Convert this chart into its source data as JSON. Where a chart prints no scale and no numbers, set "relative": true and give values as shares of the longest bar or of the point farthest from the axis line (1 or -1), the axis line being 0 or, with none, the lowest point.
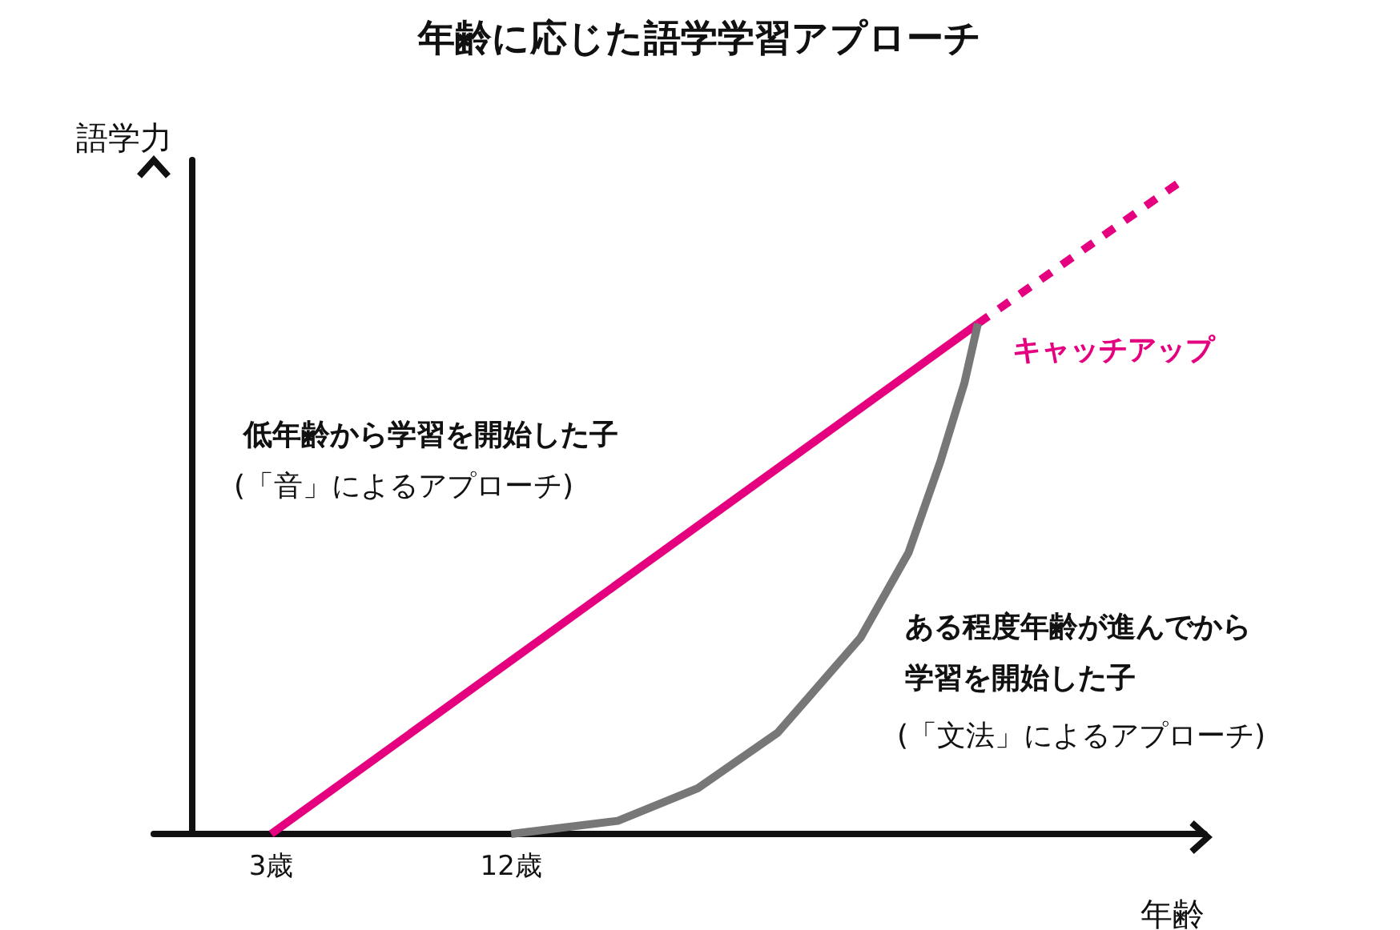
{
  "chart_data": {
    "type": "line",
    "title": "年齢に応じた語学学習アプローチ",
    "xlabel": "年齢",
    "ylabel": "語学力",
    "relative": true,
    "tick_labels": "x",
    "marker": "none",
    "xlim": [
      -1.4,
      38
    ],
    "xticks": [
      {
        "value": 3,
        "label": "3歳"
      },
      {
        "value": 12,
        "label": "12歳"
      }
    ],
    "series": [
      {
        "color": "#e4007f",
        "line_style": "solid",
        "x": [
          3,
          29.5
        ],
        "values": [
          0,
          0.78
        ]
      },
      {
        "color": "#e4007f",
        "line_style": "dashed",
        "x": [
          29.5,
          37.2
        ],
        "values": [
          0.78,
          1
        ]
      },
      {
        "color": "#777777",
        "line_style": "solid",
        "x": [
          12,
          16,
          19,
          22,
          25.1,
          26.9,
          28.1,
          29,
          29.5
        ],
        "values": [
          0,
          0.02,
          0.07,
          0.155,
          0.3,
          0.43,
          0.57,
          0.69,
          0.78
        ]
      }
    ],
    "annotations": [
      "キャッチアップ",
      "低年齢から学習を開始した子",
      "(「音」によるアプローチ)",
      "ある程度年齢が進んでから学習を開始した子",
      "(「文法」によるアプローチ)"
    ]
  }
}
